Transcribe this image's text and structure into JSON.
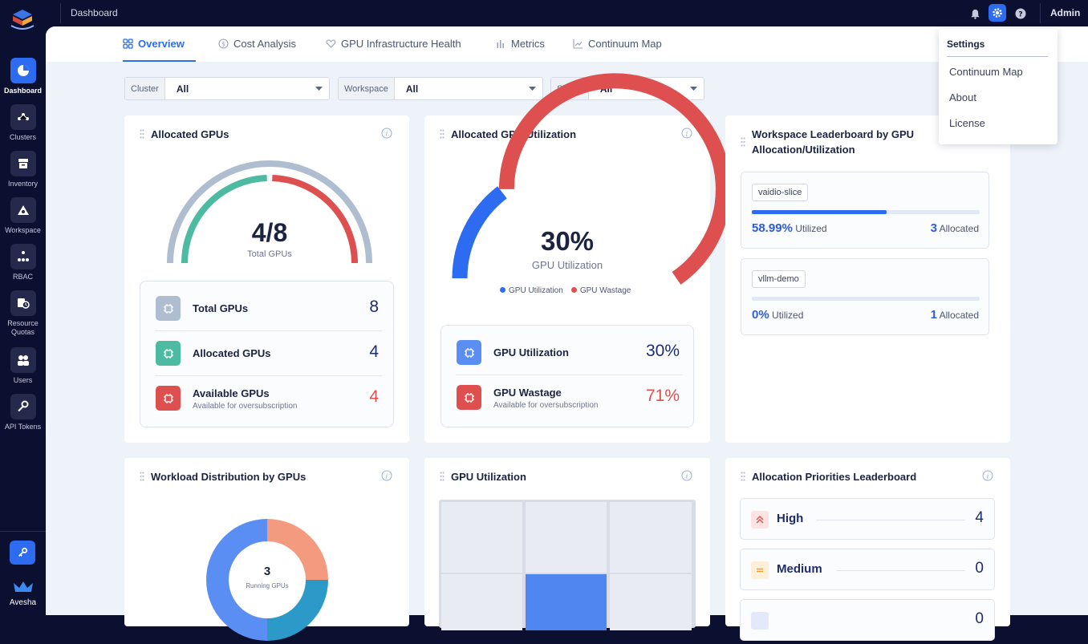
{
  "topbar": {
    "breadcrumb": "Dashboard",
    "user": "Admin"
  },
  "sidebar": {
    "items": [
      {
        "label": "Dashboard"
      },
      {
        "label": "Clusters"
      },
      {
        "label": "Inventory"
      },
      {
        "label": "Workspace"
      },
      {
        "label": "RBAC"
      },
      {
        "label": "Resource Quotas"
      },
      {
        "label": "Users"
      },
      {
        "label": "API Tokens"
      }
    ],
    "brand": "Avesha"
  },
  "tabs": [
    {
      "label": "Overview",
      "active": true
    },
    {
      "label": "Cost Analysis"
    },
    {
      "label": "GPU Infrastructure Health"
    },
    {
      "label": "Metrics"
    },
    {
      "label": "Continuum Map"
    }
  ],
  "filters": [
    {
      "label": "Cluster",
      "value": "All"
    },
    {
      "label": "Workspace",
      "value": "All"
    },
    {
      "label": "Shape",
      "value": "All"
    }
  ],
  "allocated_gpus": {
    "title": "Allocated GPUs",
    "center_value": "4/8",
    "center_label": "Total GPUs",
    "allocated_fraction": 0.5,
    "rows": [
      {
        "label": "Total GPUs",
        "value": "8"
      },
      {
        "label": "Allocated GPUs",
        "value": "4"
      },
      {
        "label": "Available GPUs",
        "sub": "Available for oversubscription",
        "value": "4"
      }
    ]
  },
  "gpu_utilization_card": {
    "title": "Allocated GPU Utilization",
    "center_value": "30%",
    "center_label": "GPU Utilization",
    "utilization_fraction": 0.3,
    "legend": [
      {
        "label": "GPU Utilization"
      },
      {
        "label": "GPU Wastage"
      }
    ],
    "rows": [
      {
        "label": "GPU Utilization",
        "value": "30%"
      },
      {
        "label": "GPU Wastage",
        "sub": "Available for oversubscription",
        "value": "71%"
      }
    ]
  },
  "leaderboard": {
    "title": "Workspace Leaderboard by GPU Allocation/Utilization",
    "items": [
      {
        "name": "vaidio-slice",
        "utilized": "58.99%",
        "utilized_fraction": 0.5899,
        "allocated": "3",
        "utilized_suffix": "Utilized",
        "allocated_suffix": "Allocated"
      },
      {
        "name": "vllm-demo",
        "utilized": "0%",
        "utilized_fraction": 0,
        "allocated": "1",
        "utilized_suffix": "Utilized",
        "allocated_suffix": "Allocated"
      }
    ]
  },
  "workload": {
    "title": "Workload Distribution by GPUs",
    "center_value": "3",
    "center_label": "Running GPUs"
  },
  "gpu_util_heatmap": {
    "title": "GPU Utilization"
  },
  "priorities": {
    "title": "Allocation Priorities Leaderboard",
    "items": [
      {
        "label": "High",
        "value": "4"
      },
      {
        "label": "Medium",
        "value": "0"
      },
      {
        "label": "",
        "value": "0"
      }
    ]
  },
  "settings_menu": {
    "title": "Settings",
    "items": [
      {
        "label": "Continuum Map"
      },
      {
        "label": "About"
      },
      {
        "label": "License"
      }
    ]
  },
  "colors": {
    "accent": "#2d6cf0",
    "teal": "#4dbba1",
    "red": "#de5050",
    "gray": "#aebdd0",
    "salmon": "#f49a7e",
    "cyan": "#2b9ac8"
  }
}
